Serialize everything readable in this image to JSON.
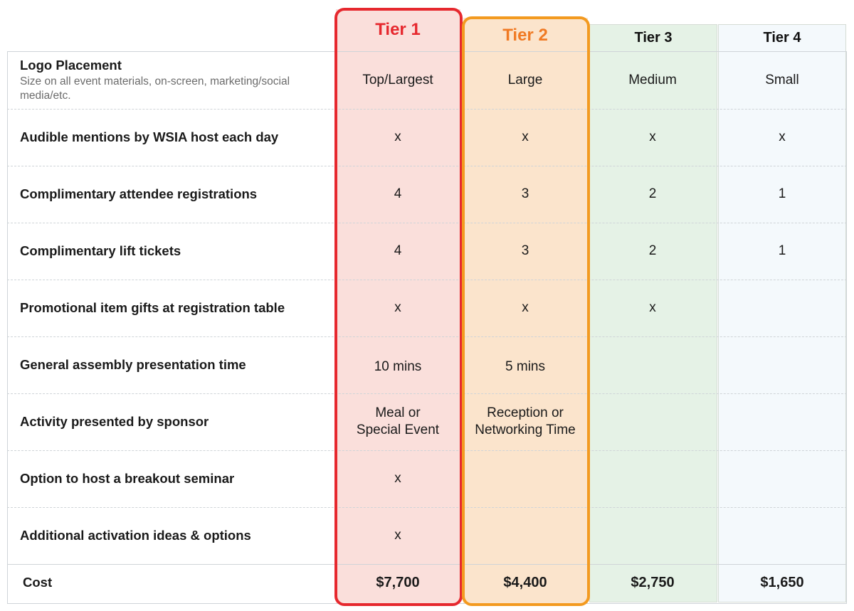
{
  "tiers": [
    {
      "name": "Tier 1",
      "color": "#e6282e",
      "bg": "#fadfdb"
    },
    {
      "name": "Tier 2",
      "color": "#f39a20",
      "bg": "#fbe4cc"
    },
    {
      "name": "Tier 3",
      "color": "#111111",
      "bg": "#e5f2e6"
    },
    {
      "name": "Tier 4",
      "color": "#111111",
      "bg": "#f4f9fc"
    }
  ],
  "rows": [
    {
      "label": "Logo Placement",
      "sublabel": "Size on all event materials, on-screen, marketing/social media/etc.",
      "values": [
        "Top/Largest",
        "Large",
        "Medium",
        "Small"
      ]
    },
    {
      "label": "Audible mentions by WSIA host each day",
      "values": [
        "x",
        "x",
        "x",
        "x"
      ]
    },
    {
      "label": "Complimentary attendee registrations",
      "values": [
        "4",
        "3",
        "2",
        "1"
      ]
    },
    {
      "label": "Complimentary lift tickets",
      "values": [
        "4",
        "3",
        "2",
        "1"
      ]
    },
    {
      "label": "Promotional item gifts at registration table",
      "values": [
        "x",
        "x",
        "x",
        ""
      ]
    },
    {
      "label": "General assembly presentation time",
      "values": [
        "10 mins",
        "5 mins",
        "",
        ""
      ]
    },
    {
      "label": "Activity presented by sponsor",
      "values": [
        "Meal or\nSpecial Event",
        "Reception or\nNetworking Time",
        "",
        ""
      ]
    },
    {
      "label": "Option to host a breakout seminar",
      "values": [
        "x",
        "",
        "",
        ""
      ]
    },
    {
      "label": "Additional activation ideas & options",
      "values": [
        "x",
        "",
        "",
        ""
      ]
    }
  ],
  "cost": {
    "label": "Cost",
    "values": [
      "$7,700",
      "$4,400",
      "$2,750",
      "$1,650"
    ]
  }
}
